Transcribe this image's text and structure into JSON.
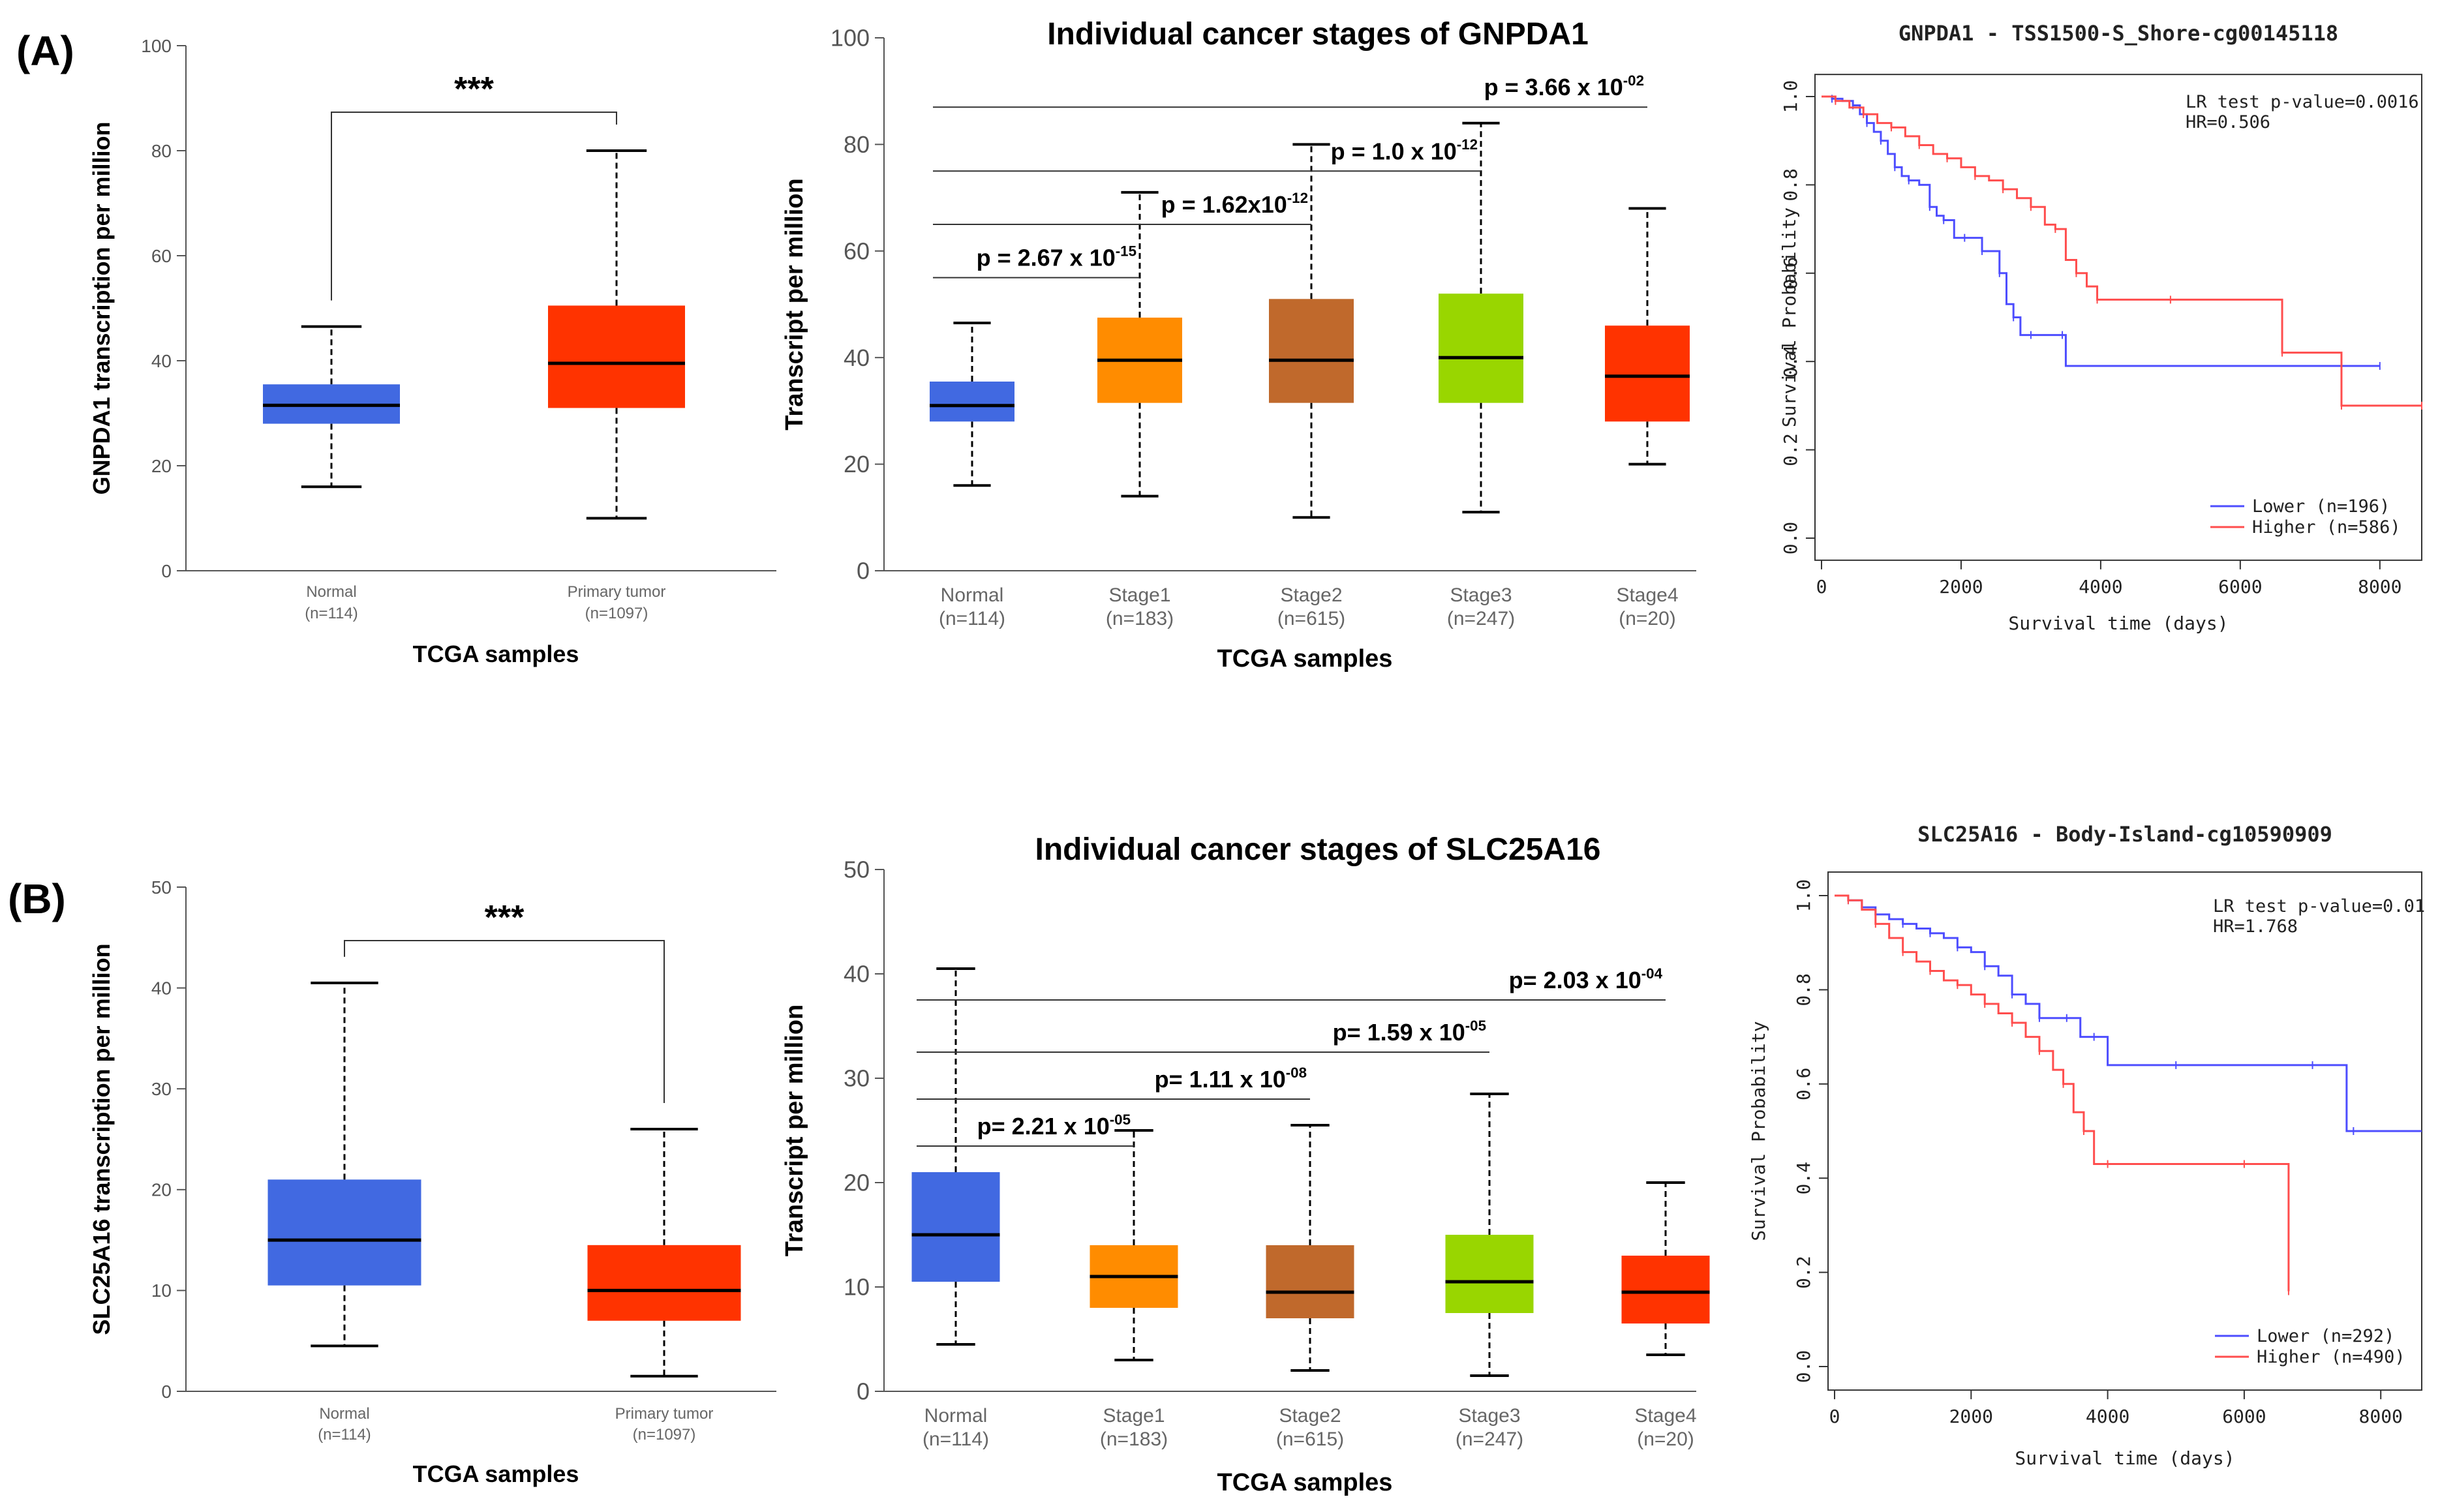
{
  "panels": [
    {
      "label": "(A)"
    },
    {
      "label": "(B)"
    }
  ],
  "chart_data": [
    {
      "type": "box",
      "panel": "A",
      "title": "",
      "ylabel": "GNPDA1 transcription per million",
      "xlabel": "TCGA samples",
      "ylim": [
        0,
        100
      ],
      "yticks": [
        "0",
        "20",
        "40",
        "60",
        "80",
        "100"
      ],
      "categories": [
        "Normal",
        "Primary tumor"
      ],
      "counts": [
        "(n=114)",
        "(n=1097)"
      ],
      "colors": [
        "#4169e1",
        "#ff3300"
      ],
      "boxes": [
        {
          "whisker_low": 16,
          "q1": 28,
          "median": 31.5,
          "q3": 35.5,
          "whisker_high": 46.5
        },
        {
          "whisker_low": 10,
          "q1": 31,
          "median": 39.5,
          "q3": 50.5,
          "whisker_high": 80
        }
      ],
      "significance": "***"
    },
    {
      "type": "box",
      "panel": "A",
      "title": "Individual cancer stages of GNPDA1",
      "ylabel": "Transcript per million",
      "xlabel": "TCGA samples",
      "ylim": [
        0,
        100
      ],
      "yticks": [
        "0",
        "20",
        "40",
        "60",
        "80",
        "100"
      ],
      "categories": [
        "Normal",
        "Stage1",
        "Stage2",
        "Stage3",
        "Stage4"
      ],
      "counts": [
        "(n=114)",
        "(n=183)",
        "(n=615)",
        "(n=247)",
        "(n=20)"
      ],
      "colors": [
        "#4169e1",
        "#ff8c00",
        "#c0692c",
        "#99d600",
        "#ff3300"
      ],
      "boxes": [
        {
          "whisker_low": 16,
          "q1": 28,
          "median": 31,
          "q3": 35.5,
          "whisker_high": 46.5
        },
        {
          "whisker_low": 14,
          "q1": 31.5,
          "median": 39.5,
          "q3": 47.5,
          "whisker_high": 71
        },
        {
          "whisker_low": 10,
          "q1": 31.5,
          "median": 39.5,
          "q3": 51,
          "whisker_high": 80
        },
        {
          "whisker_low": 11,
          "q1": 31.5,
          "median": 40,
          "q3": 52,
          "whisker_high": 84
        },
        {
          "whisker_low": 20,
          "q1": 28,
          "median": 36.5,
          "q3": 46,
          "whisker_high": 68
        }
      ],
      "comparisons": [
        {
          "to": 1,
          "y": 55,
          "p": "p = 2.67 x 10",
          "exp": "-15"
        },
        {
          "to": 2,
          "y": 65,
          "p": "p = 1.62x10",
          "exp": "-12"
        },
        {
          "to": 3,
          "y": 75,
          "p": "p = 1.0 x 10",
          "exp": "-12"
        },
        {
          "to": 4,
          "y": 87,
          "p": "p = 3.66 x 10",
          "exp": "-02"
        }
      ]
    },
    {
      "type": "line",
      "panel": "A",
      "title": "GNPDA1 - TSS1500-S_Shore-cg00145118",
      "xlabel": "Survival time (days)",
      "ylabel": "Survival Probability",
      "xlim": [
        0,
        8600
      ],
      "ylim": [
        0,
        1
      ],
      "xticks": [
        "0",
        "2000",
        "4000",
        "6000",
        "8000"
      ],
      "yticks": [
        "0.0",
        "0.2",
        "0.4",
        "0.6",
        "0.8",
        "1.0"
      ],
      "annotation": [
        "LR test p-value=0.0016",
        "HR=0.506"
      ],
      "series": [
        {
          "name": "Lower (n=196)",
          "color": "#4d4dff",
          "x": [
            0,
            150,
            300,
            450,
            550,
            650,
            750,
            850,
            950,
            1050,
            1150,
            1250,
            1400,
            1550,
            1650,
            1750,
            1900,
            2050,
            2150,
            2300,
            2450,
            2550,
            2650,
            2750,
            2850,
            3000,
            3200,
            3450,
            3500,
            8000
          ],
          "y": [
            1.0,
            0.995,
            0.99,
            0.98,
            0.96,
            0.94,
            0.92,
            0.9,
            0.87,
            0.84,
            0.82,
            0.81,
            0.8,
            0.75,
            0.73,
            0.72,
            0.68,
            0.68,
            0.68,
            0.65,
            0.65,
            0.6,
            0.53,
            0.5,
            0.46,
            0.46,
            0.46,
            0.46,
            0.39,
            0.39
          ]
        },
        {
          "name": "Higher (n=586)",
          "color": "#ff4d4d",
          "x": [
            0,
            200,
            400,
            600,
            800,
            1000,
            1200,
            1400,
            1600,
            1800,
            2000,
            2200,
            2400,
            2600,
            2800,
            3000,
            3200,
            3350,
            3500,
            3650,
            3800,
            3950,
            4100,
            5000,
            6000,
            6600,
            6700,
            7450,
            7550,
            8600
          ],
          "y": [
            1.0,
            0.99,
            0.975,
            0.96,
            0.94,
            0.93,
            0.91,
            0.89,
            0.87,
            0.86,
            0.84,
            0.82,
            0.81,
            0.79,
            0.77,
            0.75,
            0.71,
            0.7,
            0.63,
            0.6,
            0.57,
            0.54,
            0.54,
            0.54,
            0.54,
            0.42,
            0.42,
            0.3,
            0.3,
            0.3
          ]
        }
      ]
    },
    {
      "type": "box",
      "panel": "B",
      "title": "",
      "ylabel": "SLC25A16 transcription per million",
      "xlabel": "TCGA samples",
      "ylim": [
        0,
        50
      ],
      "yticks": [
        "0",
        "10",
        "20",
        "30",
        "40",
        "50"
      ],
      "categories": [
        "Normal",
        "Primary tumor"
      ],
      "counts": [
        "(n=114)",
        "(n=1097)"
      ],
      "colors": [
        "#4169e1",
        "#ff3300"
      ],
      "boxes": [
        {
          "whisker_low": 4.5,
          "q1": 10.5,
          "median": 15,
          "q3": 21,
          "whisker_high": 40.5
        },
        {
          "whisker_low": 1.5,
          "q1": 7,
          "median": 10,
          "q3": 14.5,
          "whisker_high": 26
        }
      ],
      "significance": "***"
    },
    {
      "type": "box",
      "panel": "B",
      "title": "Individual cancer stages of SLC25A16",
      "ylabel": "Transcript per million",
      "xlabel": "TCGA samples",
      "ylim": [
        0,
        50
      ],
      "yticks": [
        "0",
        "10",
        "20",
        "30",
        "40",
        "50"
      ],
      "categories": [
        "Normal",
        "Stage1",
        "Stage2",
        "Stage3",
        "Stage4"
      ],
      "counts": [
        "(n=114)",
        "(n=183)",
        "(n=615)",
        "(n=247)",
        "(n=20)"
      ],
      "colors": [
        "#4169e1",
        "#ff8c00",
        "#c0692c",
        "#99d600",
        "#ff3300"
      ],
      "boxes": [
        {
          "whisker_low": 4.5,
          "q1": 10.5,
          "median": 15,
          "q3": 21,
          "whisker_high": 40.5
        },
        {
          "whisker_low": 3,
          "q1": 8,
          "median": 11,
          "q3": 14,
          "whisker_high": 25
        },
        {
          "whisker_low": 2,
          "q1": 7,
          "median": 9.5,
          "q3": 14,
          "whisker_high": 25.5
        },
        {
          "whisker_low": 1.5,
          "q1": 7.5,
          "median": 10.5,
          "q3": 15,
          "whisker_high": 28.5
        },
        {
          "whisker_low": 3.5,
          "q1": 6.5,
          "median": 9.5,
          "q3": 13,
          "whisker_high": 20
        }
      ],
      "comparisons": [
        {
          "to": 1,
          "y": 23.5,
          "p": "p= 2.21 x 10",
          "exp": "-05"
        },
        {
          "to": 2,
          "y": 28,
          "p": "p= 1.11 x 10",
          "exp": "-08"
        },
        {
          "to": 3,
          "y": 32.5,
          "p": "p= 1.59 x 10",
          "exp": "-05"
        },
        {
          "to": 4,
          "y": 37.5,
          "p": "p= 2.03 x 10",
          "exp": "-04"
        }
      ]
    },
    {
      "type": "line",
      "panel": "B",
      "title": "SLC25A16 - Body-Island-cg10590909",
      "xlabel": "Survival time (days)",
      "ylabel": "Survival Probability",
      "xlim": [
        0,
        8600
      ],
      "ylim": [
        0,
        1
      ],
      "xticks": [
        "0",
        "2000",
        "4000",
        "6000",
        "8000"
      ],
      "yticks": [
        "0.0",
        "0.2",
        "0.4",
        "0.6",
        "0.8",
        "1.0"
      ],
      "annotation": [
        "LR test p-value=0.01",
        "HR=1.768"
      ],
      "series": [
        {
          "name": "Lower (n=292)",
          "color": "#4d4dff",
          "x": [
            0,
            200,
            400,
            600,
            800,
            1000,
            1200,
            1400,
            1600,
            1800,
            2000,
            2200,
            2400,
            2600,
            2800,
            3000,
            3200,
            3400,
            3600,
            3800,
            4000,
            5000,
            6000,
            7000,
            7500,
            7600,
            8600
          ],
          "y": [
            1.0,
            0.99,
            0.975,
            0.96,
            0.95,
            0.94,
            0.93,
            0.92,
            0.91,
            0.89,
            0.88,
            0.85,
            0.83,
            0.79,
            0.77,
            0.74,
            0.74,
            0.74,
            0.7,
            0.7,
            0.64,
            0.64,
            0.64,
            0.64,
            0.5,
            0.5,
            0.5
          ]
        },
        {
          "name": "Higher (n=490)",
          "color": "#ff4d4d",
          "x": [
            0,
            200,
            400,
            600,
            800,
            1000,
            1200,
            1400,
            1600,
            1800,
            2000,
            2200,
            2400,
            2600,
            2800,
            3000,
            3200,
            3350,
            3500,
            3650,
            3800,
            4000,
            5000,
            6000,
            6600,
            6650
          ],
          "y": [
            1.0,
            0.99,
            0.97,
            0.94,
            0.91,
            0.88,
            0.86,
            0.84,
            0.82,
            0.81,
            0.79,
            0.77,
            0.75,
            0.73,
            0.7,
            0.67,
            0.63,
            0.6,
            0.54,
            0.5,
            0.43,
            0.43,
            0.43,
            0.43,
            0.43,
            0.16
          ]
        }
      ]
    }
  ]
}
